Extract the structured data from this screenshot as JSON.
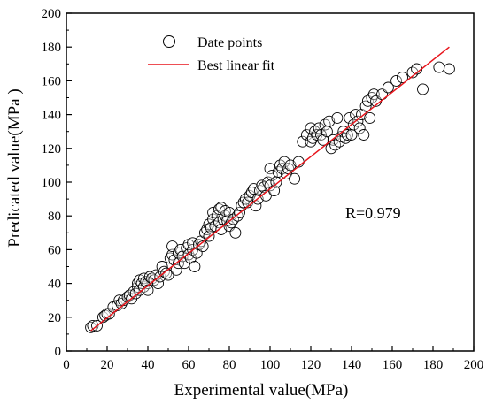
{
  "chart_data": {
    "type": "scatter",
    "xlabel": "Experimental value(MPa)",
    "ylabel": "Predicated value(MPa )",
    "xlim": [
      0,
      200
    ],
    "ylim": [
      0,
      200
    ],
    "xticks": [
      0,
      20,
      40,
      60,
      80,
      100,
      120,
      140,
      160,
      180,
      200
    ],
    "yticks": [
      0,
      20,
      40,
      60,
      80,
      100,
      120,
      140,
      160,
      180,
      200
    ],
    "grid": false,
    "legend_position": "top-left",
    "legend": [
      {
        "label": "Date points",
        "marker": "open-circle",
        "color": "#000000"
      },
      {
        "label": "Best linear fit",
        "marker": "line",
        "color": "#e8141b"
      }
    ],
    "annotation": "R=0.979",
    "fit_line": {
      "x": [
        12,
        188
      ],
      "y": [
        12,
        180
      ],
      "color": "#e8141b"
    },
    "series": [
      {
        "name": "Date points",
        "x": [
          12,
          13,
          15,
          18,
          19,
          20,
          21,
          23,
          25,
          26,
          27,
          28,
          30,
          31,
          32,
          33,
          34,
          35,
          35,
          36,
          36,
          37,
          38,
          38,
          39,
          40,
          40,
          41,
          42,
          43,
          44,
          45,
          46,
          47,
          48,
          49,
          50,
          51,
          52,
          52,
          53,
          54,
          55,
          55,
          56,
          57,
          58,
          59,
          60,
          60,
          61,
          62,
          62,
          63,
          64,
          65,
          66,
          67,
          68,
          69,
          70,
          70,
          71,
          72,
          72,
          73,
          74,
          75,
          75,
          76,
          76,
          77,
          78,
          78,
          79,
          80,
          80,
          81,
          82,
          83,
          84,
          85,
          86,
          87,
          88,
          89,
          90,
          91,
          92,
          93,
          94,
          95,
          96,
          97,
          98,
          99,
          100,
          100,
          101,
          102,
          103,
          104,
          105,
          106,
          107,
          108,
          109,
          110,
          112,
          114,
          116,
          118,
          120,
          120,
          121,
          122,
          123,
          124,
          125,
          126,
          127,
          128,
          129,
          130,
          131,
          132,
          133,
          134,
          135,
          136,
          137,
          138,
          139,
          140,
          141,
          142,
          143,
          144,
          145,
          146,
          147,
          148,
          149,
          150,
          151,
          152,
          155,
          158,
          162,
          165,
          170,
          172,
          175,
          183,
          188
        ],
        "y": [
          14,
          15,
          15,
          20,
          21,
          22,
          22,
          26,
          27,
          30,
          28,
          30,
          32,
          33,
          31,
          35,
          34,
          38,
          40,
          36,
          42,
          40,
          38,
          43,
          41,
          40,
          36,
          44,
          43,
          42,
          45,
          40,
          44,
          50,
          47,
          46,
          45,
          55,
          57,
          62,
          54,
          48,
          52,
          58,
          60,
          56,
          52,
          61,
          63,
          57,
          55,
          60,
          64,
          50,
          58,
          63,
          65,
          62,
          70,
          72,
          68,
          75,
          73,
          78,
          82,
          74,
          80,
          76,
          84,
          72,
          85,
          78,
          80,
          83,
          77,
          74,
          82,
          76,
          78,
          70,
          80,
          82,
          86,
          88,
          90,
          88,
          92,
          94,
          96,
          86,
          90,
          95,
          98,
          97,
          92,
          100,
          98,
          108,
          104,
          95,
          100,
          106,
          110,
          108,
          112,
          105,
          108,
          110,
          102,
          112,
          124,
          128,
          132,
          124,
          126,
          130,
          128,
          132,
          128,
          125,
          134,
          130,
          136,
          120,
          125,
          122,
          138,
          124,
          127,
          130,
          126,
          128,
          138,
          128,
          134,
          140,
          136,
          132,
          140,
          128,
          145,
          148,
          138,
          150,
          152,
          148,
          152,
          156,
          160,
          162,
          165,
          167,
          155,
          168,
          167
        ]
      }
    ]
  }
}
